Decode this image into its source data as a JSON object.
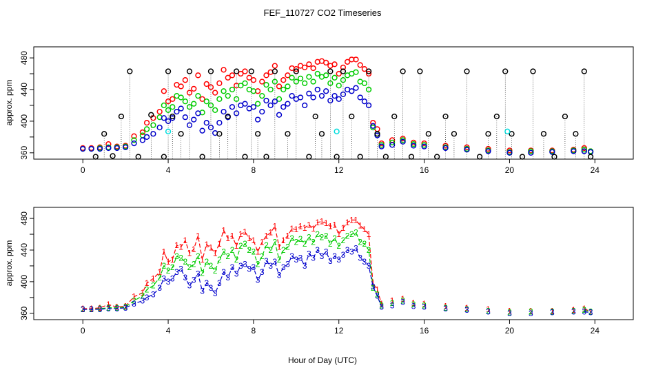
{
  "chart_data": [
    {
      "type": "scatter",
      "title": "FEF_110727  CO2 Timeseries",
      "xlabel": "",
      "ylabel": "approx. ppm",
      "xlim": [
        -2.3,
        25.8
      ],
      "ylim": [
        352,
        494
      ],
      "xticks": [
        0,
        4,
        8,
        12,
        16,
        20,
        24
      ],
      "yticks": [
        360,
        400,
        440,
        480
      ],
      "marker": "open-circle",
      "series": [
        {
          "name": "red",
          "color": "#ff0000",
          "x": [
            0,
            0.4,
            0.8,
            1.2,
            1.6,
            2.0,
            2.4,
            2.8,
            3.0,
            3.3,
            3.6,
            3.8,
            4.0,
            4.2,
            4.4,
            4.6,
            4.8,
            5.0,
            5.2,
            5.4,
            5.6,
            5.8,
            6.0,
            6.2,
            6.4,
            6.6,
            6.8,
            7.0,
            7.2,
            7.4,
            7.6,
            7.8,
            8.0,
            8.2,
            8.4,
            8.6,
            8.8,
            9.0,
            9.2,
            9.4,
            9.6,
            9.8,
            10.0,
            10.2,
            10.4,
            10.6,
            10.8,
            11.0,
            11.2,
            11.4,
            11.6,
            11.8,
            12.0,
            12.2,
            12.4,
            12.6,
            12.8,
            13.0,
            13.2,
            13.4,
            13.6,
            13.8,
            14.0,
            14.5,
            15.0,
            15.5,
            16.0,
            17.0,
            18.0,
            19.0,
            20.0,
            21.0,
            22.0,
            23.0,
            23.5,
            23.8
          ],
          "y": [
            366,
            366,
            367,
            371,
            368,
            369,
            381,
            386,
            398,
            404,
            412,
            438,
            425,
            428,
            446,
            444,
            452,
            436,
            441,
            458,
            428,
            447,
            443,
            436,
            448,
            465,
            455,
            458,
            445,
            460,
            463,
            455,
            452,
            438,
            450,
            458,
            462,
            470,
            444,
            452,
            458,
            467,
            466,
            470,
            468,
            472,
            467,
            475,
            476,
            474,
            470,
            472,
            460,
            468,
            475,
            478,
            478,
            471,
            466,
            460,
            398,
            390,
            372,
            376,
            378,
            373,
            372,
            369,
            367,
            365,
            363,
            363,
            363,
            364,
            366,
            362
          ]
        },
        {
          "name": "green",
          "color": "#00cc00",
          "x": [
            0,
            0.4,
            0.8,
            1.2,
            1.6,
            2.0,
            2.4,
            2.8,
            3.0,
            3.3,
            3.6,
            3.8,
            4.0,
            4.2,
            4.4,
            4.6,
            4.8,
            5.0,
            5.2,
            5.4,
            5.6,
            5.8,
            6.0,
            6.2,
            6.4,
            6.6,
            6.8,
            7.0,
            7.2,
            7.4,
            7.6,
            7.8,
            8.0,
            8.2,
            8.4,
            8.6,
            8.8,
            9.0,
            9.2,
            9.4,
            9.6,
            9.8,
            10.0,
            10.2,
            10.4,
            10.6,
            10.8,
            11.0,
            11.2,
            11.4,
            11.6,
            11.8,
            12.0,
            12.2,
            12.4,
            12.6,
            12.8,
            13.0,
            13.2,
            13.4,
            13.6,
            13.8,
            14.0,
            14.5,
            15.0,
            15.5,
            16.0,
            17.0,
            18.0,
            19.0,
            20.0,
            21.0,
            22.0,
            23.0,
            23.5,
            23.8
          ],
          "y": [
            365,
            365,
            366,
            367,
            367,
            368,
            376,
            382,
            390,
            395,
            405,
            420,
            414,
            418,
            432,
            430,
            425,
            418,
            422,
            432,
            411,
            425,
            420,
            414,
            428,
            438,
            432,
            440,
            428,
            445,
            448,
            440,
            438,
            422,
            432,
            446,
            440,
            450,
            428,
            440,
            444,
            455,
            450,
            454,
            448,
            456,
            450,
            460,
            456,
            458,
            448,
            455,
            445,
            452,
            458,
            460,
            462,
            450,
            448,
            440,
            392,
            384,
            370,
            373,
            376,
            371,
            370,
            367,
            365,
            363,
            361,
            362,
            362,
            363,
            364,
            362
          ]
        },
        {
          "name": "blue",
          "color": "#0000cc",
          "x": [
            0,
            0.4,
            0.8,
            1.2,
            1.6,
            2.0,
            2.4,
            2.8,
            3.0,
            3.3,
            3.6,
            3.8,
            4.0,
            4.2,
            4.4,
            4.6,
            4.8,
            5.0,
            5.2,
            5.4,
            5.6,
            5.8,
            6.0,
            6.2,
            6.4,
            6.6,
            6.8,
            7.0,
            7.2,
            7.4,
            7.6,
            7.8,
            8.0,
            8.2,
            8.4,
            8.6,
            8.8,
            9.0,
            9.2,
            9.4,
            9.6,
            9.8,
            10.0,
            10.2,
            10.4,
            10.6,
            10.8,
            11.0,
            11.2,
            11.4,
            11.6,
            11.8,
            12.0,
            12.2,
            12.4,
            12.6,
            12.8,
            13.0,
            13.2,
            13.4,
            13.6,
            13.8,
            14.0,
            14.5,
            15.0,
            15.5,
            16.0,
            17.0,
            18.0,
            19.0,
            20.0,
            21.0,
            22.0,
            23.0,
            23.5,
            23.8
          ],
          "y": [
            365,
            365,
            365,
            366,
            366,
            367,
            372,
            376,
            380,
            384,
            392,
            404,
            400,
            404,
            412,
            416,
            405,
            395,
            402,
            410,
            388,
            398,
            392,
            385,
            398,
            412,
            405,
            418,
            410,
            420,
            422,
            416,
            418,
            402,
            412,
            426,
            420,
            425,
            408,
            418,
            422,
            432,
            428,
            430,
            420,
            435,
            430,
            440,
            432,
            438,
            426,
            432,
            428,
            434,
            440,
            438,
            442,
            430,
            425,
            420,
            394,
            382,
            368,
            370,
            374,
            369,
            368,
            366,
            364,
            362,
            360,
            360,
            361,
            362,
            362,
            361
          ]
        },
        {
          "name": "black",
          "color": "#000000",
          "x": [
            0.6,
            1.0,
            1.4,
            1.8,
            2.2,
            2.6,
            3.2,
            3.8,
            4.0,
            4.2,
            4.6,
            5.0,
            5.6,
            6.0,
            6.4,
            6.8,
            7.2,
            7.6,
            7.9,
            8.2,
            8.6,
            9.0,
            9.6,
            10.0,
            10.6,
            10.9,
            11.2,
            11.6,
            11.9,
            12.2,
            12.6,
            13.0,
            13.4,
            13.8,
            14.2,
            14.6,
            15.0,
            15.4,
            15.8,
            16.2,
            16.6,
            17.0,
            17.4,
            18.0,
            18.6,
            19.0,
            19.4,
            19.8,
            20.1,
            20.6,
            21.1,
            21.6,
            22.1,
            22.6,
            23.1,
            23.5,
            23.8
          ],
          "y": [
            355,
            384,
            356,
            406,
            463,
            355,
            408,
            355,
            463,
            406,
            384,
            463,
            355,
            463,
            384,
            406,
            463,
            355,
            463,
            384,
            355,
            463,
            384,
            463,
            355,
            406,
            384,
            463,
            355,
            463,
            406,
            355,
            463,
            384,
            355,
            406,
            463,
            355,
            463,
            384,
            355,
            406,
            384,
            463,
            355,
            384,
            406,
            463,
            384,
            355,
            463,
            384,
            355,
            406,
            384,
            463,
            355
          ]
        },
        {
          "name": "cyan",
          "color": "#00dddd",
          "x": [
            4.0,
            11.9,
            19.9
          ],
          "y": [
            387,
            387,
            387
          ]
        }
      ]
    },
    {
      "type": "line",
      "title": "",
      "xlabel": "Hour of Day (UTC)",
      "ylabel": "approx. ppm",
      "xlim": [
        -2.3,
        25.8
      ],
      "ylim": [
        352,
        494
      ],
      "xticks": [
        0,
        4,
        8,
        12,
        16,
        20,
        24
      ],
      "yticks": [
        360,
        400,
        440,
        480
      ],
      "marker": "digit-label",
      "series": [
        {
          "name": "1",
          "label": "1",
          "color": "#ff0000",
          "x": [
            0,
            0.4,
            0.8,
            1.2,
            1.6,
            2.0,
            2.4,
            2.8,
            3.0,
            3.3,
            3.6,
            3.8,
            4.0,
            4.2,
            4.4,
            4.6,
            4.8,
            5.0,
            5.2,
            5.4,
            5.6,
            5.8,
            6.0,
            6.2,
            6.4,
            6.6,
            6.8,
            7.0,
            7.2,
            7.4,
            7.6,
            7.8,
            8.0,
            8.2,
            8.4,
            8.6,
            8.8,
            9.0,
            9.2,
            9.4,
            9.6,
            9.8,
            10.0,
            10.2,
            10.4,
            10.6,
            10.8,
            11.0,
            11.2,
            11.4,
            11.6,
            11.8,
            12.0,
            12.2,
            12.4,
            12.6,
            12.8,
            13.0,
            13.2,
            13.4,
            13.6,
            13.8,
            14.0,
            14.5,
            15.0,
            15.5,
            16.0,
            17.0,
            18.0,
            19.0,
            20.0,
            21.0,
            22.0,
            23.0,
            23.5,
            23.8
          ],
          "y": [
            366,
            366,
            367,
            371,
            368,
            369,
            381,
            386,
            398,
            404,
            412,
            438,
            425,
            428,
            446,
            444,
            452,
            436,
            441,
            458,
            428,
            447,
            443,
            436,
            448,
            465,
            455,
            458,
            445,
            460,
            463,
            455,
            452,
            438,
            450,
            458,
            462,
            470,
            444,
            452,
            458,
            467,
            466,
            470,
            468,
            472,
            467,
            475,
            476,
            474,
            470,
            472,
            460,
            468,
            475,
            478,
            478,
            471,
            466,
            460,
            398,
            390,
            372,
            376,
            378,
            373,
            372,
            369,
            367,
            365,
            363,
            363,
            363,
            364,
            366,
            362
          ]
        },
        {
          "name": "2",
          "label": "2",
          "color": "#00cc00",
          "x": [
            0,
            0.4,
            0.8,
            1.2,
            1.6,
            2.0,
            2.4,
            2.8,
            3.0,
            3.3,
            3.6,
            3.8,
            4.0,
            4.2,
            4.4,
            4.6,
            4.8,
            5.0,
            5.2,
            5.4,
            5.6,
            5.8,
            6.0,
            6.2,
            6.4,
            6.6,
            6.8,
            7.0,
            7.2,
            7.4,
            7.6,
            7.8,
            8.0,
            8.2,
            8.4,
            8.6,
            8.8,
            9.0,
            9.2,
            9.4,
            9.6,
            9.8,
            10.0,
            10.2,
            10.4,
            10.6,
            10.8,
            11.0,
            11.2,
            11.4,
            11.6,
            11.8,
            12.0,
            12.2,
            12.4,
            12.6,
            12.8,
            13.0,
            13.2,
            13.4,
            13.6,
            13.8,
            14.0,
            14.5,
            15.0,
            15.5,
            16.0,
            17.0,
            18.0,
            19.0,
            20.0,
            21.0,
            22.0,
            23.0,
            23.5,
            23.8
          ],
          "y": [
            365,
            365,
            366,
            367,
            367,
            368,
            376,
            382,
            390,
            395,
            405,
            420,
            414,
            418,
            432,
            430,
            425,
            418,
            422,
            432,
            411,
            425,
            420,
            414,
            428,
            438,
            432,
            440,
            428,
            445,
            448,
            440,
            438,
            422,
            432,
            446,
            440,
            450,
            428,
            440,
            444,
            455,
            450,
            454,
            448,
            456,
            450,
            460,
            456,
            458,
            448,
            455,
            445,
            452,
            458,
            460,
            462,
            450,
            448,
            440,
            392,
            384,
            370,
            373,
            376,
            371,
            370,
            367,
            365,
            363,
            361,
            362,
            362,
            363,
            364,
            362
          ]
        },
        {
          "name": "3",
          "label": "3",
          "color": "#0000cc",
          "x": [
            0,
            0.4,
            0.8,
            1.2,
            1.6,
            2.0,
            2.4,
            2.8,
            3.0,
            3.3,
            3.6,
            3.8,
            4.0,
            4.2,
            4.4,
            4.6,
            4.8,
            5.0,
            5.2,
            5.4,
            5.6,
            5.8,
            6.0,
            6.2,
            6.4,
            6.6,
            6.8,
            7.0,
            7.2,
            7.4,
            7.6,
            7.8,
            8.0,
            8.2,
            8.4,
            8.6,
            8.8,
            9.0,
            9.2,
            9.4,
            9.6,
            9.8,
            10.0,
            10.2,
            10.4,
            10.6,
            10.8,
            11.0,
            11.2,
            11.4,
            11.6,
            11.8,
            12.0,
            12.2,
            12.4,
            12.6,
            12.8,
            13.0,
            13.2,
            13.4,
            13.6,
            13.8,
            14.0,
            14.5,
            15.0,
            15.5,
            16.0,
            17.0,
            18.0,
            19.0,
            20.0,
            21.0,
            22.0,
            23.0,
            23.5,
            23.8
          ],
          "y": [
            365,
            365,
            365,
            366,
            366,
            367,
            372,
            376,
            380,
            384,
            392,
            404,
            400,
            404,
            412,
            416,
            405,
            395,
            402,
            410,
            388,
            398,
            392,
            385,
            398,
            412,
            405,
            418,
            410,
            420,
            422,
            416,
            418,
            402,
            412,
            426,
            420,
            425,
            408,
            418,
            422,
            432,
            428,
            430,
            420,
            435,
            430,
            440,
            432,
            438,
            426,
            432,
            428,
            434,
            440,
            438,
            442,
            430,
            425,
            420,
            394,
            382,
            368,
            370,
            374,
            369,
            368,
            366,
            364,
            362,
            360,
            360,
            361,
            362,
            362,
            361
          ]
        }
      ]
    }
  ]
}
